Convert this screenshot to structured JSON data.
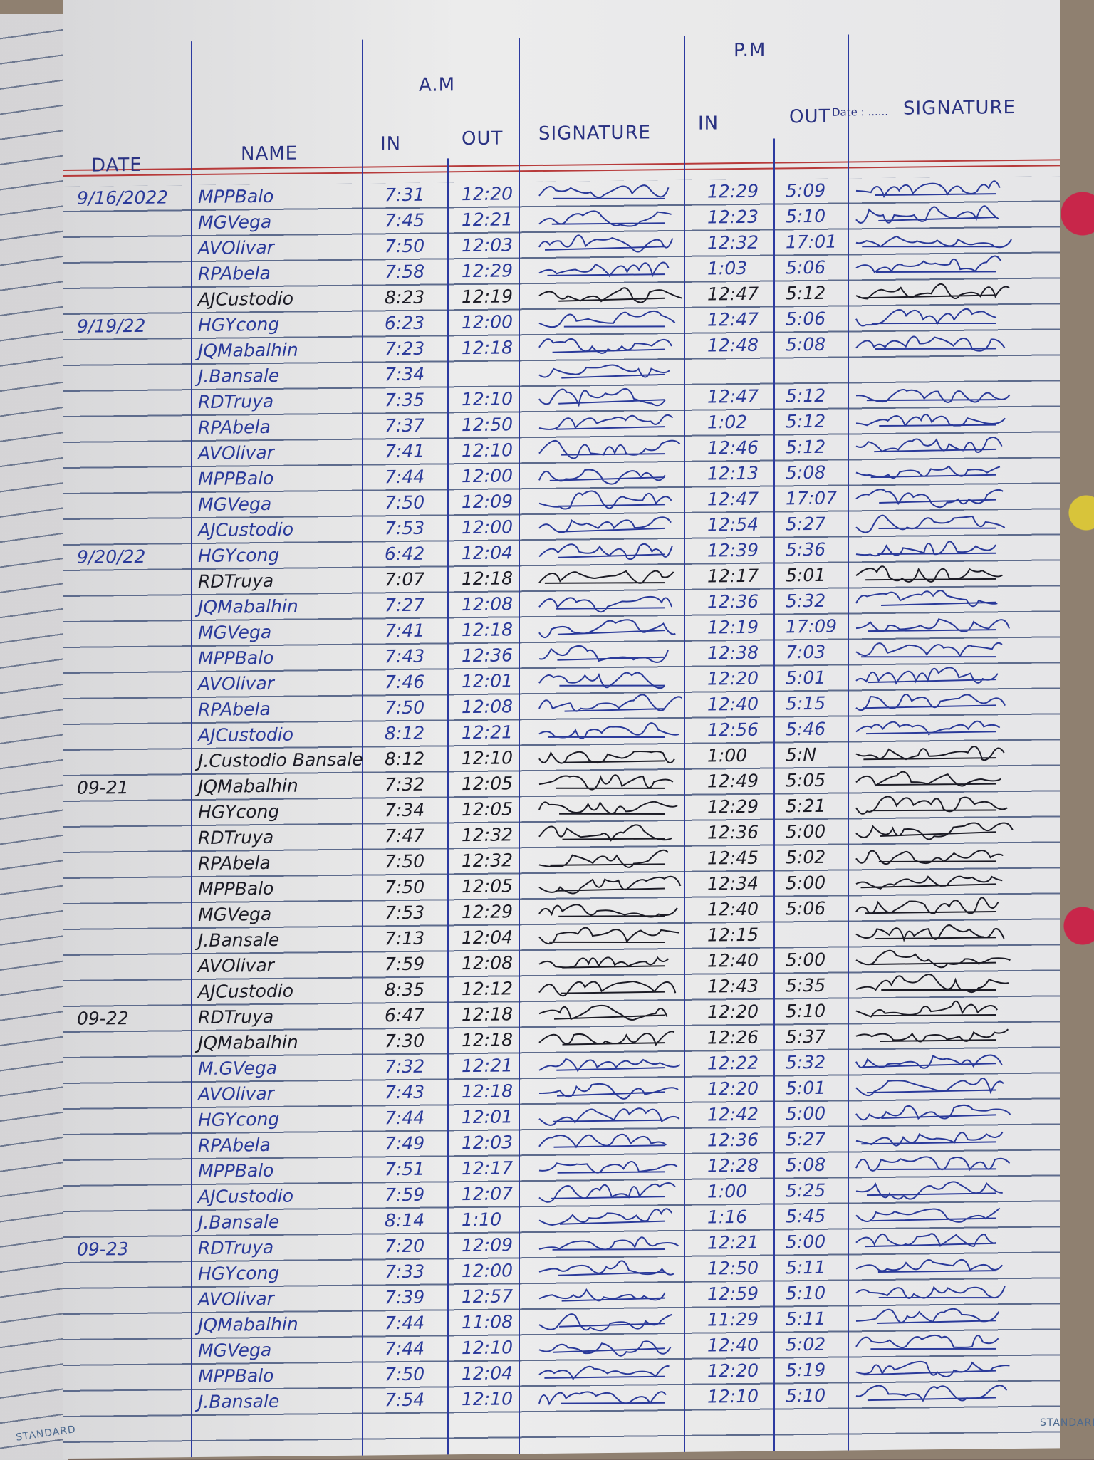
{
  "header": {
    "am": "A.M",
    "pm": "P.M",
    "date": "DATE",
    "name": "NAME",
    "am_in": "IN",
    "am_out": "OUT",
    "am_signature": "SIGNATURE",
    "pm_in": "IN",
    "pm_out": "OUT",
    "pm_date_print": "Date : ......",
    "pm_signature": "SIGNATURE"
  },
  "footer": {
    "brand_left": "STANDARD",
    "brand_right": "STANDARD"
  },
  "colors": {
    "blue_ink": "#2a3a9a",
    "black_ink": "#1c1c26",
    "red_margin": "#b73a3a",
    "rule_blue": "#5d6b8c"
  },
  "rows": [
    {
      "date": "9/16/2022",
      "name": "MPPBalo",
      "am_in": "7:31",
      "am_out": "12:20",
      "pm_in": "12:29",
      "pm_out": "5:09",
      "ink": "#2a3a9a"
    },
    {
      "date": "",
      "name": "MGVega",
      "am_in": "7:45",
      "am_out": "12:21",
      "pm_in": "12:23",
      "pm_out": "5:10",
      "ink": "#2a3a9a"
    },
    {
      "date": "",
      "name": "AVOlivar",
      "am_in": "7:50",
      "am_out": "12:03",
      "pm_in": "12:32",
      "pm_out": "17:01",
      "ink": "#2a3a9a"
    },
    {
      "date": "",
      "name": "RPAbela",
      "am_in": "7:58",
      "am_out": "12:29",
      "pm_in": "1:03",
      "pm_out": "5:06",
      "ink": "#2a3a9a"
    },
    {
      "date": "",
      "name": "AJCustodio",
      "am_in": "8:23",
      "am_out": "12:19",
      "pm_in": "12:47",
      "pm_out": "5:12",
      "ink": "#1c1c26"
    },
    {
      "date": "9/19/22",
      "name": "HGYcong",
      "am_in": "6:23",
      "am_out": "12:00",
      "pm_in": "12:47",
      "pm_out": "5:06",
      "ink": "#2a3a9a"
    },
    {
      "date": "",
      "name": "JQMabalhin",
      "am_in": "7:23",
      "am_out": "12:18",
      "pm_in": "12:48",
      "pm_out": "5:08",
      "ink": "#2a3a9a"
    },
    {
      "date": "",
      "name": "J.Bansale",
      "am_in": "7:34",
      "am_out": "",
      "pm_in": "",
      "pm_out": "",
      "ink": "#2a3a9a"
    },
    {
      "date": "",
      "name": "RDTruya",
      "am_in": "7:35",
      "am_out": "12:10",
      "pm_in": "12:47",
      "pm_out": "5:12",
      "ink": "#2a3a9a"
    },
    {
      "date": "",
      "name": "RPAbela",
      "am_in": "7:37",
      "am_out": "12:50",
      "pm_in": "1:02",
      "pm_out": "5:12",
      "ink": "#2a3a9a"
    },
    {
      "date": "",
      "name": "AVOlivar",
      "am_in": "7:41",
      "am_out": "12:10",
      "pm_in": "12:46",
      "pm_out": "5:12",
      "ink": "#2a3a9a"
    },
    {
      "date": "",
      "name": "MPPBalo",
      "am_in": "7:44",
      "am_out": "12:00",
      "pm_in": "12:13",
      "pm_out": "5:08",
      "ink": "#2a3a9a"
    },
    {
      "date": "",
      "name": "MGVega",
      "am_in": "7:50",
      "am_out": "12:09",
      "pm_in": "12:47",
      "pm_out": "17:07",
      "ink": "#2a3a9a"
    },
    {
      "date": "",
      "name": "AJCustodio",
      "am_in": "7:53",
      "am_out": "12:00",
      "pm_in": "12:54",
      "pm_out": "5:27",
      "ink": "#2a3a9a"
    },
    {
      "date": "9/20/22",
      "name": "HGYcong",
      "am_in": "6:42",
      "am_out": "12:04",
      "pm_in": "12:39",
      "pm_out": "5:36",
      "ink": "#2a3a9a"
    },
    {
      "date": "",
      "name": "RDTruya",
      "am_in": "7:07",
      "am_out": "12:18",
      "pm_in": "12:17",
      "pm_out": "5:01",
      "ink": "#1c1c26"
    },
    {
      "date": "",
      "name": "JQMabalhin",
      "am_in": "7:27",
      "am_out": "12:08",
      "pm_in": "12:36",
      "pm_out": "5:32",
      "ink": "#2a3a9a"
    },
    {
      "date": "",
      "name": "MGVega",
      "am_in": "7:41",
      "am_out": "12:18",
      "pm_in": "12:19",
      "pm_out": "17:09",
      "ink": "#2a3a9a"
    },
    {
      "date": "",
      "name": "MPPBalo",
      "am_in": "7:43",
      "am_out": "12:36",
      "pm_in": "12:38",
      "pm_out": "7:03",
      "ink": "#2a3a9a"
    },
    {
      "date": "",
      "name": "AVOlivar",
      "am_in": "7:46",
      "am_out": "12:01",
      "pm_in": "12:20",
      "pm_out": "5:01",
      "ink": "#2a3a9a"
    },
    {
      "date": "",
      "name": "RPAbela",
      "am_in": "7:50",
      "am_out": "12:08",
      "pm_in": "12:40",
      "pm_out": "5:15",
      "ink": "#2a3a9a"
    },
    {
      "date": "",
      "name": "AJCustodio",
      "am_in": "8:12",
      "am_out": "12:21",
      "pm_in": "12:56",
      "pm_out": "5:46",
      "ink": "#2a3a9a"
    },
    {
      "date": "",
      "name": "J.Custodio Bansale",
      "am_in": "8:12",
      "am_out": "12:10",
      "pm_in": "1:00",
      "pm_out": "5:N",
      "ink": "#1c1c26"
    },
    {
      "date": "09-21",
      "name": "JQMabalhin",
      "am_in": "7:32",
      "am_out": "12:05",
      "pm_in": "12:49",
      "pm_out": "5:05",
      "ink": "#1c1c26"
    },
    {
      "date": "",
      "name": "HGYcong",
      "am_in": "7:34",
      "am_out": "12:05",
      "pm_in": "12:29",
      "pm_out": "5:21",
      "ink": "#1c1c26"
    },
    {
      "date": "",
      "name": "RDTruya",
      "am_in": "7:47",
      "am_out": "12:32",
      "pm_in": "12:36",
      "pm_out": "5:00",
      "ink": "#1c1c26"
    },
    {
      "date": "",
      "name": "RPAbela",
      "am_in": "7:50",
      "am_out": "12:32",
      "pm_in": "12:45",
      "pm_out": "5:02",
      "ink": "#1c1c26"
    },
    {
      "date": "",
      "name": "MPPBalo",
      "am_in": "7:50",
      "am_out": "12:05",
      "pm_in": "12:34",
      "pm_out": "5:00",
      "ink": "#1c1c26"
    },
    {
      "date": "",
      "name": "MGVega",
      "am_in": "7:53",
      "am_out": "12:29",
      "pm_in": "12:40",
      "pm_out": "5:06",
      "ink": "#1c1c26"
    },
    {
      "date": "",
      "name": "J.Bansale",
      "am_in": "7:13",
      "am_out": "12:04",
      "pm_in": "12:15",
      "pm_out": "",
      "ink": "#1c1c26"
    },
    {
      "date": "",
      "name": "AVOlivar",
      "am_in": "7:59",
      "am_out": "12:08",
      "pm_in": "12:40",
      "pm_out": "5:00",
      "ink": "#1c1c26"
    },
    {
      "date": "",
      "name": "AJCustodio",
      "am_in": "8:35",
      "am_out": "12:12",
      "pm_in": "12:43",
      "pm_out": "5:35",
      "ink": "#1c1c26"
    },
    {
      "date": "09-22",
      "name": "RDTruya",
      "am_in": "6:47",
      "am_out": "12:18",
      "pm_in": "12:20",
      "pm_out": "5:10",
      "ink": "#1c1c26"
    },
    {
      "date": "",
      "name": "JQMabalhin",
      "am_in": "7:30",
      "am_out": "12:18",
      "pm_in": "12:26",
      "pm_out": "5:37",
      "ink": "#1c1c26"
    },
    {
      "date": "",
      "name": "M.GVega",
      "am_in": "7:32",
      "am_out": "12:21",
      "pm_in": "12:22",
      "pm_out": "5:32",
      "ink": "#2a3a9a"
    },
    {
      "date": "",
      "name": "AVOlivar",
      "am_in": "7:43",
      "am_out": "12:18",
      "pm_in": "12:20",
      "pm_out": "5:01",
      "ink": "#2a3a9a"
    },
    {
      "date": "",
      "name": "HGYcong",
      "am_in": "7:44",
      "am_out": "12:01",
      "pm_in": "12:42",
      "pm_out": "5:00",
      "ink": "#2a3a9a"
    },
    {
      "date": "",
      "name": "RPAbela",
      "am_in": "7:49",
      "am_out": "12:03",
      "pm_in": "12:36",
      "pm_out": "5:27",
      "ink": "#2a3a9a"
    },
    {
      "date": "",
      "name": "MPPBalo",
      "am_in": "7:51",
      "am_out": "12:17",
      "pm_in": "12:28",
      "pm_out": "5:08",
      "ink": "#2a3a9a"
    },
    {
      "date": "",
      "name": "AJCustodio",
      "am_in": "7:59",
      "am_out": "12:07",
      "pm_in": "1:00",
      "pm_out": "5:25",
      "ink": "#2a3a9a"
    },
    {
      "date": "",
      "name": "J.Bansale",
      "am_in": "8:14",
      "am_out": "1:10",
      "pm_in": "1:16",
      "pm_out": "5:45",
      "ink": "#2a3a9a"
    },
    {
      "date": "09-23",
      "name": "RDTruya",
      "am_in": "7:20",
      "am_out": "12:09",
      "pm_in": "12:21",
      "pm_out": "5:00",
      "ink": "#2a3a9a"
    },
    {
      "date": "",
      "name": "HGYcong",
      "am_in": "7:33",
      "am_out": "12:00",
      "pm_in": "12:50",
      "pm_out": "5:11",
      "ink": "#2a3a9a"
    },
    {
      "date": "",
      "name": "AVOlivar",
      "am_in": "7:39",
      "am_out": "12:57",
      "pm_in": "12:59",
      "pm_out": "5:10",
      "ink": "#2a3a9a"
    },
    {
      "date": "",
      "name": "JQMabalhin",
      "am_in": "7:44",
      "am_out": "11:08",
      "pm_in": "11:29",
      "pm_out": "5:11",
      "ink": "#2a3a9a"
    },
    {
      "date": "",
      "name": "MGVega",
      "am_in": "7:44",
      "am_out": "12:10",
      "pm_in": "12:40",
      "pm_out": "5:02",
      "ink": "#2a3a9a"
    },
    {
      "date": "",
      "name": "MPPBalo",
      "am_in": "7:50",
      "am_out": "12:04",
      "pm_in": "12:20",
      "pm_out": "5:19",
      "ink": "#2a3a9a"
    },
    {
      "date": "",
      "name": "J.Bansale",
      "am_in": "7:54",
      "am_out": "12:10",
      "pm_in": "12:10",
      "pm_out": "5:10",
      "ink": "#2a3a9a"
    }
  ]
}
